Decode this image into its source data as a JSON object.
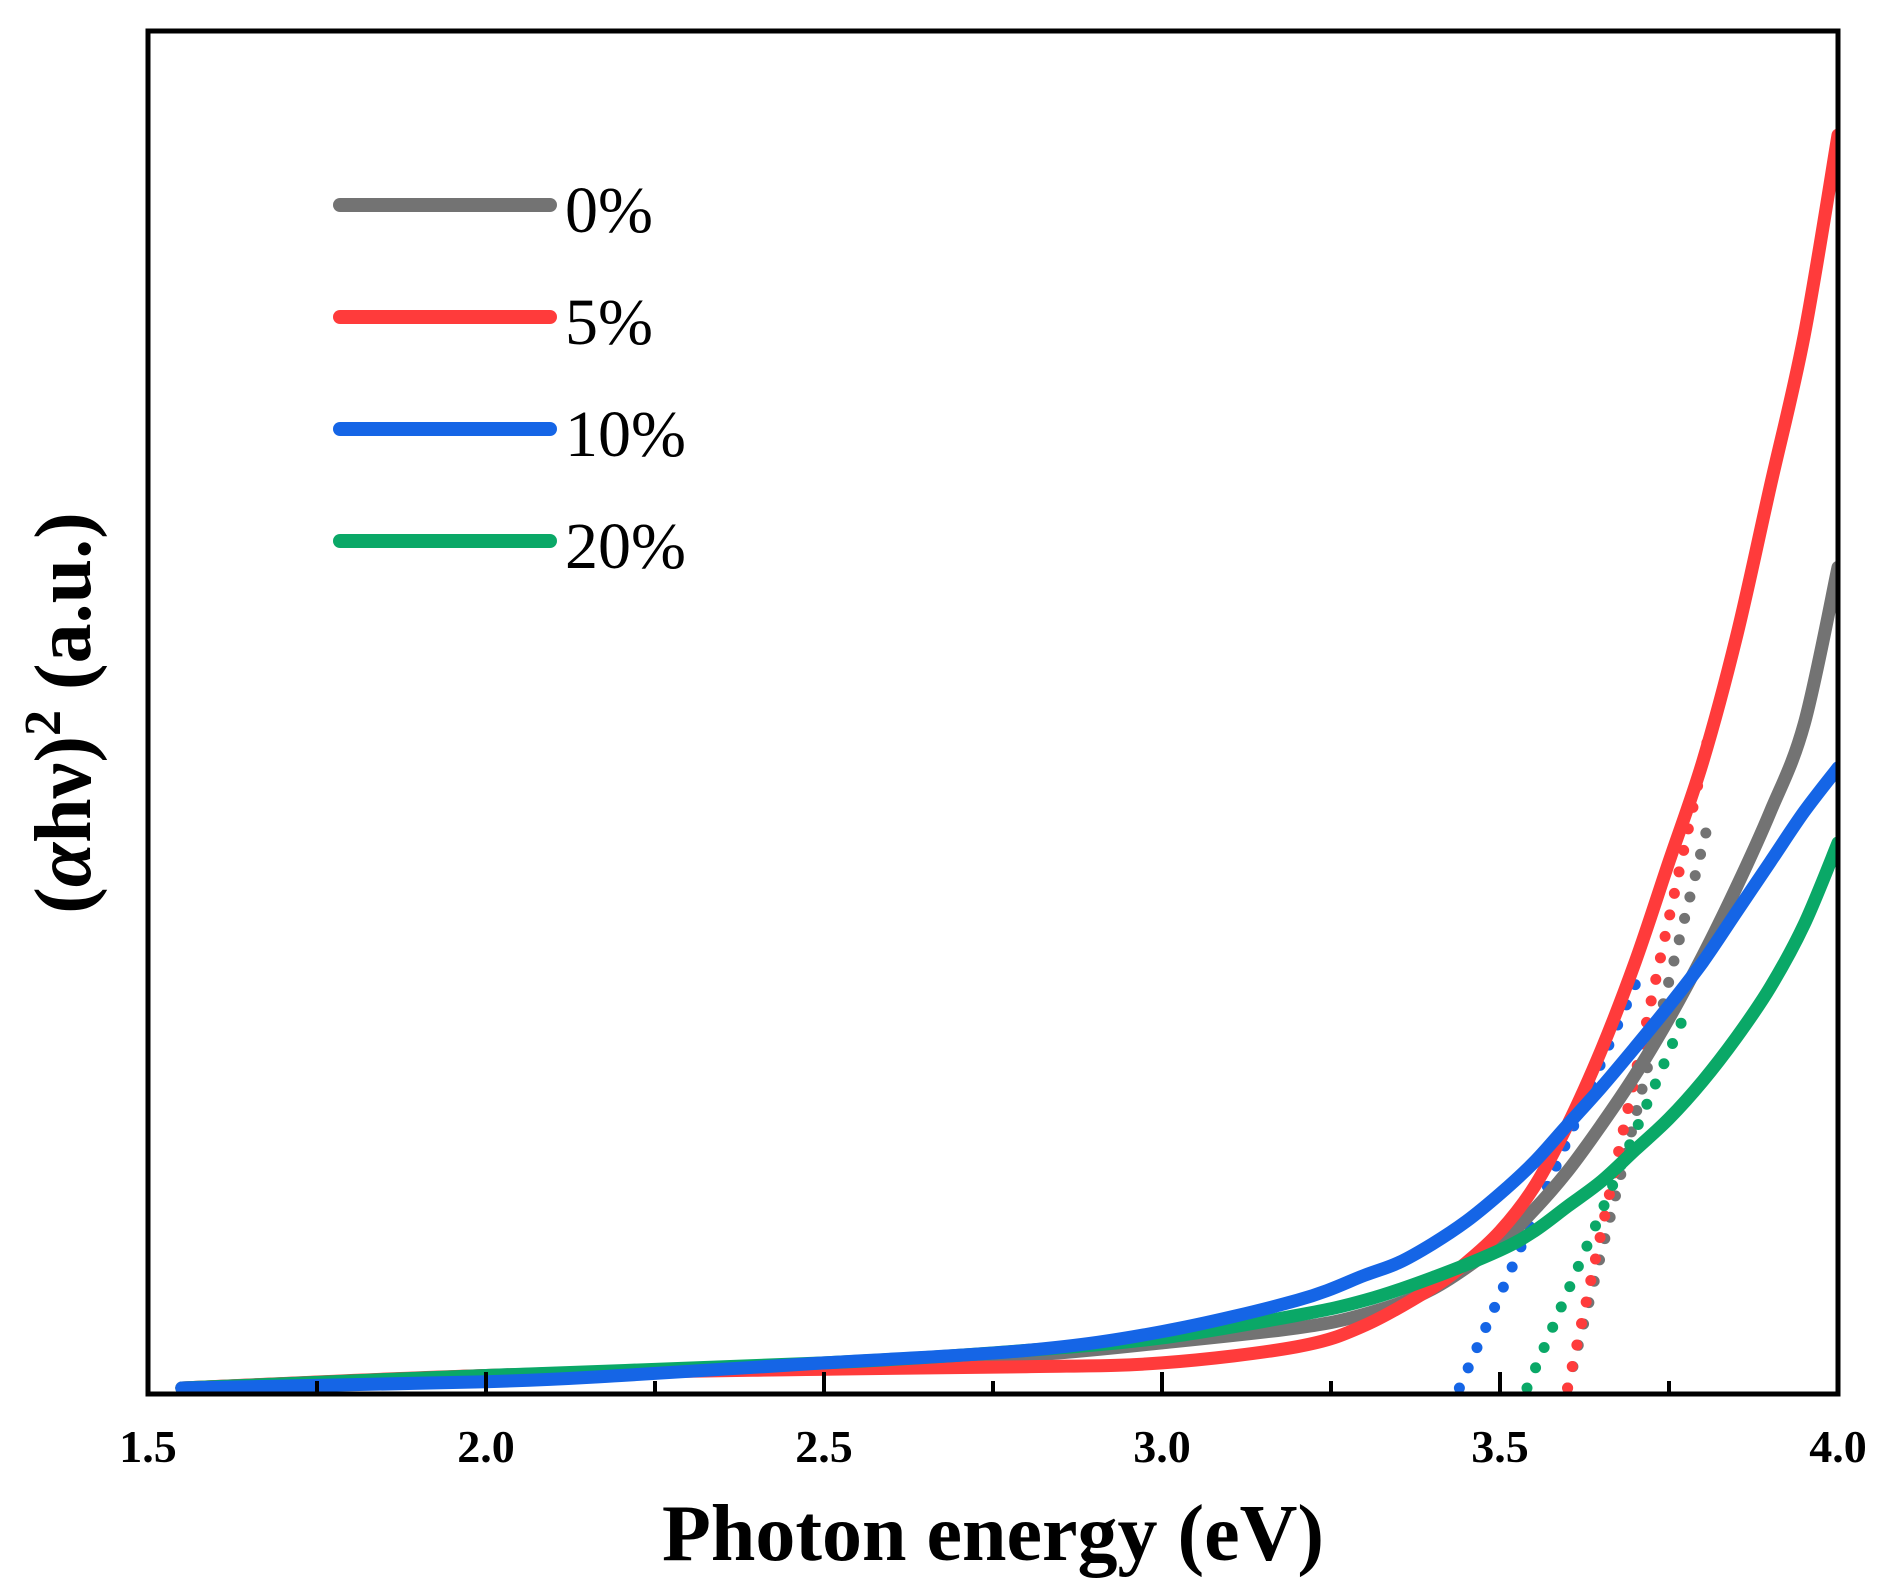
{
  "chart_data": {
    "type": "line",
    "title": "",
    "xlabel": "Photon energy (eV)",
    "ylabel": "(αhν)² (a.u.)",
    "ylabel_parts": {
      "open": "(",
      "alpha": "α",
      "hnu": "hν",
      "close": ")",
      "exp": "2",
      "units": " (a.u.)"
    },
    "xlim": [
      1.5,
      4.0
    ],
    "ylim": [
      0,
      1.0
    ],
    "xticks": [
      "1.5",
      "2.0",
      "2.5",
      "3.0",
      "3.5",
      "4.0"
    ],
    "yticks_shown": false,
    "legend_position": "top-left",
    "series": [
      {
        "name": "0%",
        "color": "#737373",
        "x": [
          1.55,
          2.0,
          2.5,
          2.8,
          3.0,
          3.2,
          3.3,
          3.4,
          3.5,
          3.55,
          3.6,
          3.65,
          3.7,
          3.75,
          3.8,
          3.85,
          3.9,
          3.95,
          4.0
        ],
        "y": [
          0.0,
          0.01,
          0.018,
          0.026,
          0.036,
          0.048,
          0.059,
          0.079,
          0.116,
          0.142,
          0.173,
          0.21,
          0.25,
          0.295,
          0.345,
          0.4,
          0.46,
          0.53,
          0.655
        ],
        "fit_x": [
          3.6,
          3.75
        ],
        "fit_y": [
          0.0,
          0.325
        ]
      },
      {
        "name": "5%",
        "color": "#ff3b3b",
        "x": [
          1.55,
          2.0,
          2.5,
          2.8,
          3.0,
          3.2,
          3.3,
          3.4,
          3.45,
          3.5,
          3.55,
          3.6,
          3.65,
          3.7,
          3.75,
          3.8,
          3.85,
          3.9,
          3.95,
          4.0
        ],
        "y": [
          0.0,
          0.01,
          0.015,
          0.017,
          0.02,
          0.033,
          0.05,
          0.08,
          0.1,
          0.125,
          0.16,
          0.21,
          0.27,
          0.34,
          0.42,
          0.5,
          0.6,
          0.72,
          0.84,
          1.0
        ],
        "fit_x": [
          3.6,
          3.75
        ],
        "fit_y": [
          0.0,
          0.375
        ]
      },
      {
        "name": "10%",
        "color": "#1565e6",
        "x": [
          1.55,
          2.0,
          2.2,
          2.5,
          2.8,
          3.0,
          3.2,
          3.3,
          3.35,
          3.4,
          3.45,
          3.5,
          3.55,
          3.6,
          3.65,
          3.7,
          3.75,
          3.8,
          3.85,
          3.9,
          3.95,
          4.0
        ],
        "y": [
          0.0,
          0.005,
          0.01,
          0.02,
          0.03,
          0.045,
          0.07,
          0.09,
          0.1,
          0.115,
          0.133,
          0.155,
          0.18,
          0.21,
          0.24,
          0.272,
          0.305,
          0.34,
          0.38,
          0.42,
          0.46,
          0.495
        ],
        "fit_x": [
          3.44,
          3.65
        ],
        "fit_y": [
          0.0,
          0.26
        ]
      },
      {
        "name": "20%",
        "color": "#0aa867",
        "x": [
          1.55,
          2.0,
          2.5,
          2.8,
          3.0,
          3.2,
          3.3,
          3.4,
          3.5,
          3.55,
          3.6,
          3.65,
          3.7,
          3.75,
          3.8,
          3.85,
          3.9,
          3.95,
          4.0
        ],
        "y": [
          0.0,
          0.01,
          0.02,
          0.03,
          0.04,
          0.058,
          0.07,
          0.088,
          0.11,
          0.125,
          0.145,
          0.165,
          0.19,
          0.215,
          0.245,
          0.28,
          0.32,
          0.37,
          0.435
        ],
        "fit_x": [
          3.54,
          3.72
        ],
        "fit_y": [
          0.0,
          0.23
        ]
      }
    ]
  }
}
